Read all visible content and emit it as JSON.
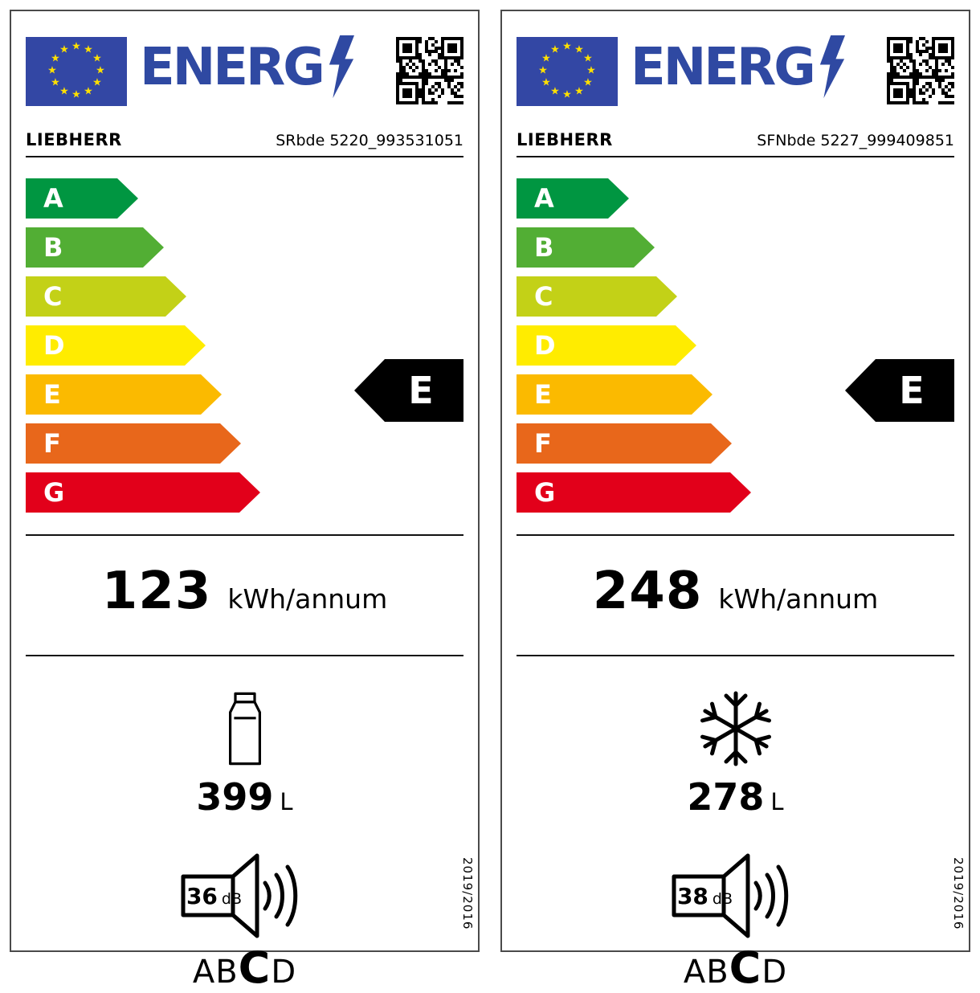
{
  "brand_color": "#2F49A2",
  "flag": {
    "background": "#3347A4",
    "star_color": "#FFE000"
  },
  "logo": {
    "text": "ENERG"
  },
  "classes": [
    {
      "letter": "A",
      "color": "#009641"
    },
    {
      "letter": "B",
      "color": "#52AE34"
    },
    {
      "letter": "C",
      "color": "#C3D117"
    },
    {
      "letter": "D",
      "color": "#FFEC00"
    },
    {
      "letter": "E",
      "color": "#FBBA00"
    },
    {
      "letter": "F",
      "color": "#E8671B"
    },
    {
      "letter": "G",
      "color": "#E2001A"
    }
  ],
  "units": {
    "energy": "kWh/annum",
    "volume": "L",
    "noise": "dB"
  },
  "noise_scale": {
    "left": "AB",
    "highlight": "C",
    "right": "D"
  },
  "regulation": "2019/2016",
  "labels": [
    {
      "brand": "LIEBHERR",
      "model": "SRbde 5220_993531051",
      "rating": "E",
      "energy_value": "123",
      "volume_value": "399",
      "noise_value": "36",
      "compartment": "fridge"
    },
    {
      "brand": "LIEBHERR",
      "model": "SFNbde 5227_999409851",
      "rating": "E",
      "energy_value": "248",
      "volume_value": "278",
      "noise_value": "38",
      "compartment": "freezer"
    }
  ]
}
